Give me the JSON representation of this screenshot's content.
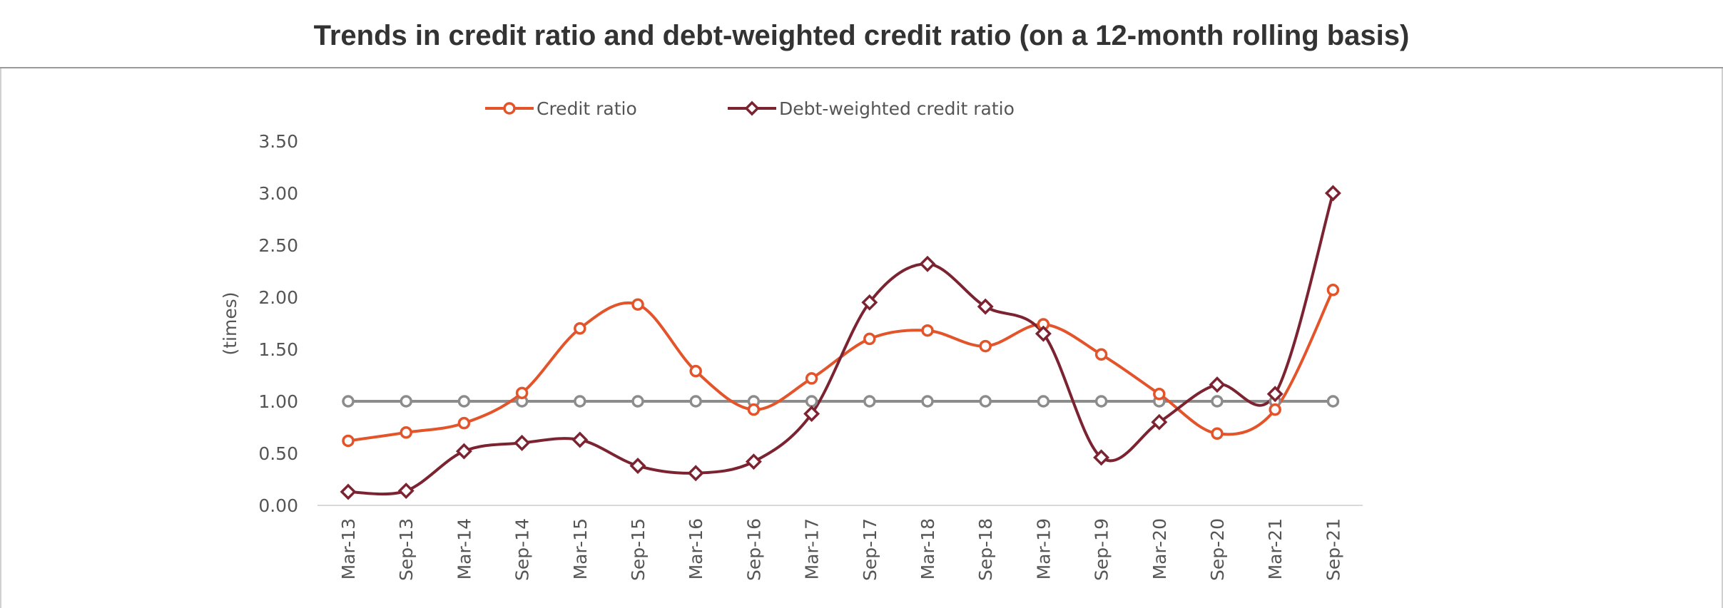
{
  "title": "Trends in credit ratio and debt-weighted credit ratio (on a 12-month rolling basis)",
  "chart_data": {
    "type": "line",
    "ylabel": "(times)",
    "xlabel": "",
    "ylim": [
      0,
      3.5
    ],
    "yticks": [
      "0.00",
      "0.50",
      "1.00",
      "1.50",
      "2.00",
      "2.50",
      "3.00",
      "3.50"
    ],
    "grid": false,
    "legend_position": "top",
    "categories": [
      "Mar-13",
      "Sep-13",
      "Mar-14",
      "Sep-14",
      "Mar-15",
      "Sep-15",
      "Mar-16",
      "Sep-16",
      "Mar-17",
      "Sep-17",
      "Mar-18",
      "Sep-18",
      "Mar-19",
      "Sep-19",
      "Mar-20",
      "Sep-20",
      "Mar-21",
      "Sep-21"
    ],
    "series": [
      {
        "name": "Credit ratio",
        "color": "#e3542a",
        "marker": "circle",
        "values": [
          0.62,
          0.7,
          0.79,
          1.08,
          1.7,
          1.93,
          1.29,
          0.92,
          1.22,
          1.6,
          1.68,
          1.53,
          1.74,
          1.45,
          1.07,
          0.69,
          0.92,
          2.07
        ]
      },
      {
        "name": "Debt-weighted credit ratio",
        "color": "#7b2331",
        "marker": "diamond",
        "values": [
          0.13,
          0.14,
          0.52,
          0.6,
          0.63,
          0.38,
          0.31,
          0.42,
          0.88,
          1.95,
          2.32,
          1.91,
          1.65,
          0.46,
          0.8,
          1.16,
          1.07,
          3.0
        ]
      },
      {
        "color": "#8c8c8c",
        "marker": "circle",
        "values": [
          1,
          1,
          1,
          1,
          1,
          1,
          1,
          1,
          1,
          1,
          1,
          1,
          1,
          1,
          1,
          1,
          1,
          1
        ]
      }
    ]
  }
}
